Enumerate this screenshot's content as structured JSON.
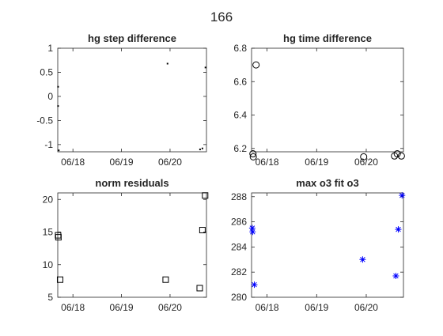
{
  "figure": {
    "title": "166"
  },
  "chart_data": [
    {
      "id": "hg-step",
      "type": "scatter",
      "title": "hg step difference",
      "xlabel": "",
      "ylabel": "",
      "x_is_date": true,
      "xlim": [
        "2015-06-17T16:30",
        "2015-06-20T18:00"
      ],
      "ylim": [
        -1.15,
        1
      ],
      "xticks": [
        {
          "value": "2015-06-18T00:00",
          "label": "06/18"
        },
        {
          "value": "2015-06-19T00:00",
          "label": "06/19"
        },
        {
          "value": "2015-06-20T00:00",
          "label": "06/20"
        }
      ],
      "yticks": [
        {
          "value": 1,
          "label": "1"
        },
        {
          "value": 0.5,
          "label": "0.5"
        },
        {
          "value": 0,
          "label": "0"
        },
        {
          "value": -0.5,
          "label": "-0.5"
        },
        {
          "value": -1,
          "label": "-1"
        }
      ],
      "marker": "dot",
      "color": "#000000",
      "series": [
        {
          "points": [
            {
              "x": "2015-06-17T16:40",
              "y": 0.2
            },
            {
              "x": "2015-06-17T16:40",
              "y": -0.2
            },
            {
              "x": "2015-06-17T17:00",
              "y": -1.12
            },
            {
              "x": "2015-06-19T22:45",
              "y": 0.68
            },
            {
              "x": "2015-06-20T14:50",
              "y": -1.1
            },
            {
              "x": "2015-06-20T16:00",
              "y": -1.08
            },
            {
              "x": "2015-06-20T17:30",
              "y": 0.6
            }
          ]
        }
      ]
    },
    {
      "id": "hg-time",
      "type": "scatter",
      "title": "hg time difference",
      "xlabel": "",
      "ylabel": "",
      "x_is_date": true,
      "xlim": [
        "2015-06-17T16:30",
        "2015-06-20T18:00"
      ],
      "ylim": [
        6.18,
        6.8
      ],
      "xticks": [
        {
          "value": "2015-06-18T00:00",
          "label": "06/18"
        },
        {
          "value": "2015-06-19T00:00",
          "label": "06/19"
        },
        {
          "value": "2015-06-20T00:00",
          "label": "06/20"
        }
      ],
      "yticks": [
        {
          "value": 6.8,
          "label": "6.8"
        },
        {
          "value": 6.6,
          "label": "6.6"
        },
        {
          "value": 6.4,
          "label": "6.4"
        },
        {
          "value": 6.2,
          "label": "6.2"
        }
      ],
      "marker": "circle",
      "color": "#000000",
      "series": [
        {
          "points": [
            {
              "x": "2015-06-17T17:10",
              "y": 6.168
            },
            {
              "x": "2015-06-17T17:20",
              "y": 6.15
            },
            {
              "x": "2015-06-17T18:40",
              "y": 6.7
            },
            {
              "x": "2015-06-19T22:45",
              "y": 6.15
            },
            {
              "x": "2015-06-20T13:40",
              "y": 6.155
            },
            {
              "x": "2015-06-20T15:00",
              "y": 6.168
            },
            {
              "x": "2015-06-20T17:00",
              "y": 6.155
            }
          ]
        }
      ]
    },
    {
      "id": "norm-res",
      "type": "scatter",
      "title": "norm residuals",
      "xlabel": "",
      "ylabel": "",
      "x_is_date": true,
      "xlim": [
        "2015-06-17T16:30",
        "2015-06-20T18:00"
      ],
      "ylim": [
        5,
        21
      ],
      "xticks": [
        {
          "value": "2015-06-18T00:00",
          "label": "06/18"
        },
        {
          "value": "2015-06-19T00:00",
          "label": "06/19"
        },
        {
          "value": "2015-06-20T00:00",
          "label": "06/20"
        }
      ],
      "yticks": [
        {
          "value": 20,
          "label": "20"
        },
        {
          "value": 15,
          "label": "15"
        },
        {
          "value": 10,
          "label": "10"
        },
        {
          "value": 5,
          "label": "5"
        }
      ],
      "marker": "square",
      "color": "#000000",
      "series": [
        {
          "points": [
            {
              "x": "2015-06-17T16:40",
              "y": 14.5
            },
            {
              "x": "2015-06-17T16:50",
              "y": 14.2
            },
            {
              "x": "2015-06-17T17:40",
              "y": 7.7
            },
            {
              "x": "2015-06-19T21:50",
              "y": 7.7
            },
            {
              "x": "2015-06-20T14:40",
              "y": 6.4
            },
            {
              "x": "2015-06-20T16:00",
              "y": 15.3
            },
            {
              "x": "2015-06-20T17:20",
              "y": 20.6
            }
          ]
        }
      ]
    },
    {
      "id": "max-o3",
      "type": "scatter",
      "title": "max o3 fit o3",
      "xlabel": "",
      "ylabel": "",
      "x_is_date": true,
      "xlim": [
        "2015-06-17T16:30",
        "2015-06-20T18:00"
      ],
      "ylim": [
        280,
        288.3
      ],
      "xticks": [
        {
          "value": "2015-06-18T00:00",
          "label": "06/18"
        },
        {
          "value": "2015-06-19T00:00",
          "label": "06/19"
        },
        {
          "value": "2015-06-20T00:00",
          "label": "06/20"
        }
      ],
      "yticks": [
        {
          "value": 288,
          "label": "288"
        },
        {
          "value": 286,
          "label": "286"
        },
        {
          "value": 284,
          "label": "284"
        },
        {
          "value": 282,
          "label": "282"
        },
        {
          "value": 280,
          "label": "280"
        }
      ],
      "marker": "asterisk",
      "color": "#0000ff",
      "series": [
        {
          "points": [
            {
              "x": "2015-06-17T16:50",
              "y": 285.5
            },
            {
              "x": "2015-06-17T17:00",
              "y": 285.2
            },
            {
              "x": "2015-06-17T17:50",
              "y": 281.0
            },
            {
              "x": "2015-06-19T22:15",
              "y": 283.0
            },
            {
              "x": "2015-06-20T14:20",
              "y": 281.7
            },
            {
              "x": "2015-06-20T15:30",
              "y": 285.4
            },
            {
              "x": "2015-06-20T17:20",
              "y": 288.1
            }
          ]
        }
      ]
    }
  ]
}
